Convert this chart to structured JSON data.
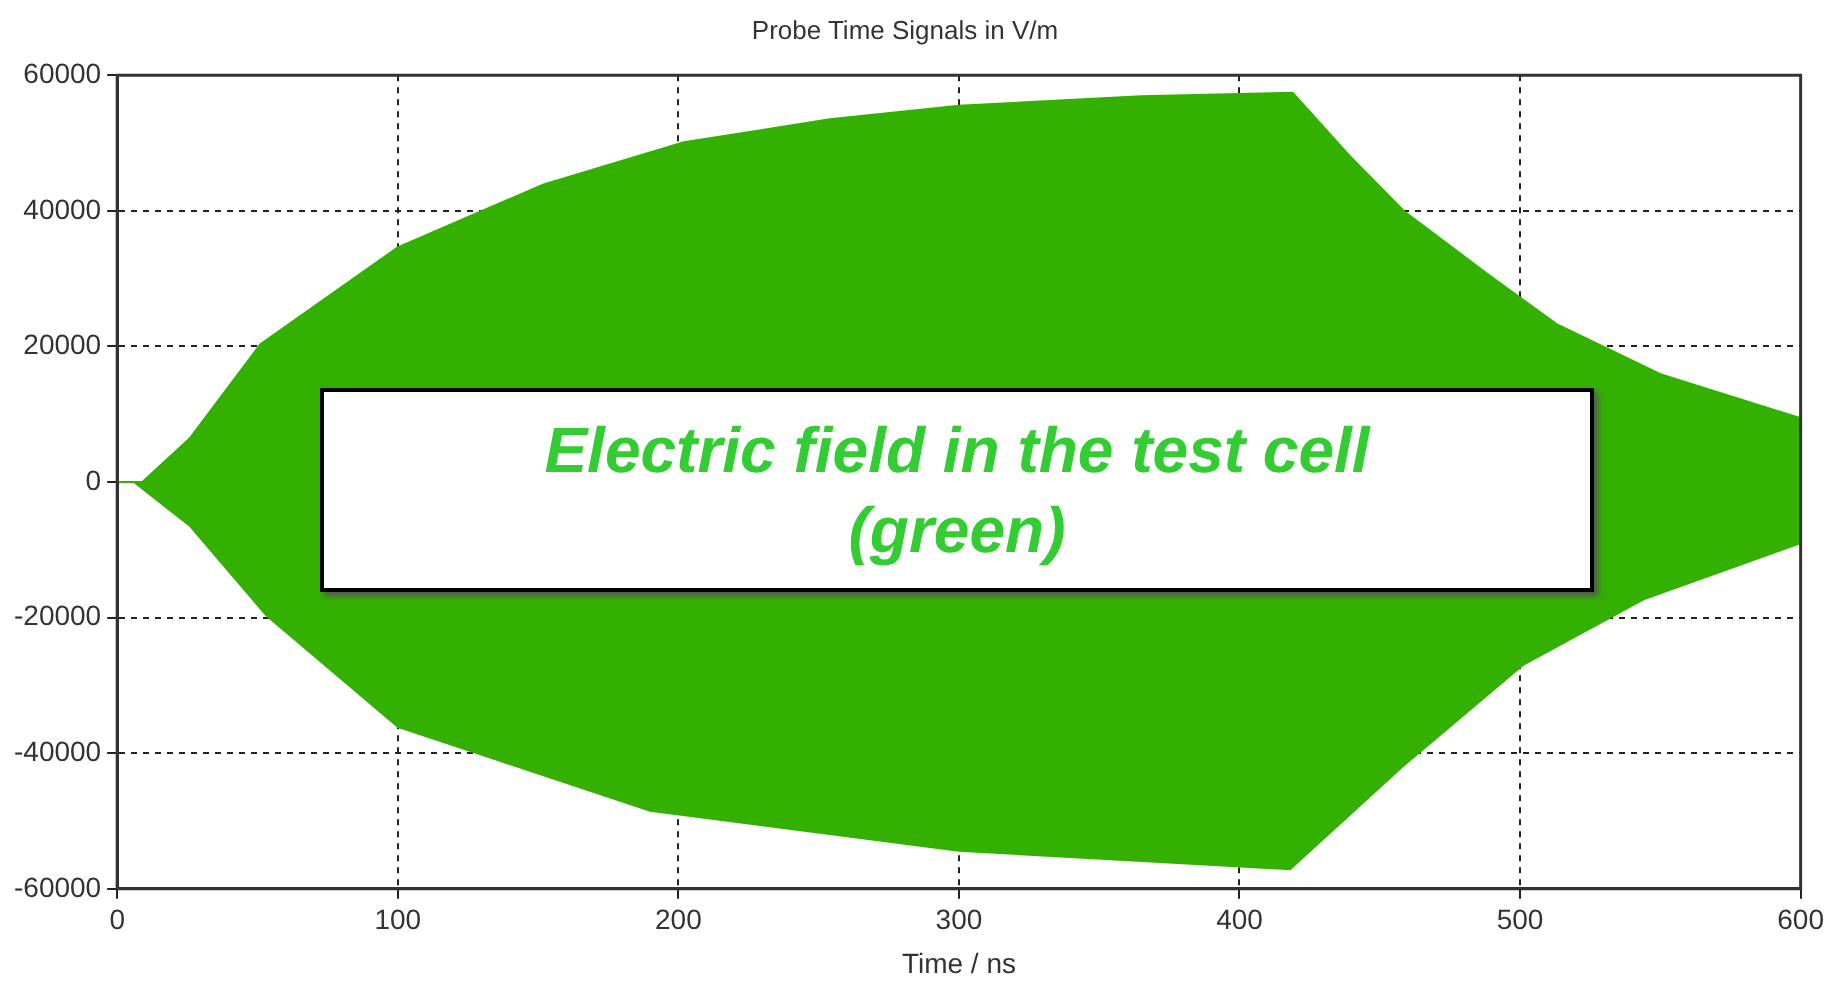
{
  "chart_data": {
    "type": "area",
    "title": "Probe Time Signals in V/m",
    "xlabel": "Time / ns",
    "series": [
      {
        "color": "#33b000",
        "x": [
          0,
          9,
          26,
          51,
          100,
          152,
          202,
          254,
          300,
          365,
          419,
          439,
          459,
          489,
          513,
          550,
          600
        ],
        "values": [
          0,
          0,
          6500,
          20300,
          34600,
          43900,
          50100,
          53500,
          55500,
          56900,
          57400,
          48200,
          39800,
          30500,
          23300,
          15900,
          9400
        ]
      },
      {
        "color": "#33b000",
        "x": [
          0,
          6,
          26,
          53,
          100,
          190,
          300,
          418,
          458,
          501,
          544,
          600
        ],
        "values": [
          0,
          0,
          -6500,
          -19600,
          -36100,
          -48500,
          -54400,
          -57100,
          -42000,
          -27000,
          -17300,
          -9000
        ]
      }
    ],
    "xlim": [
      0,
      600
    ],
    "xticks": [
      0,
      100,
      200,
      300,
      400,
      500,
      600
    ],
    "ylim": [
      -60000,
      60000
    ],
    "yticks": [
      -60000,
      -40000,
      -20000,
      0,
      20000,
      40000,
      60000
    ],
    "grid": true,
    "legend": false,
    "annotations": [
      "Electric field in the test cell (green)"
    ]
  }
}
